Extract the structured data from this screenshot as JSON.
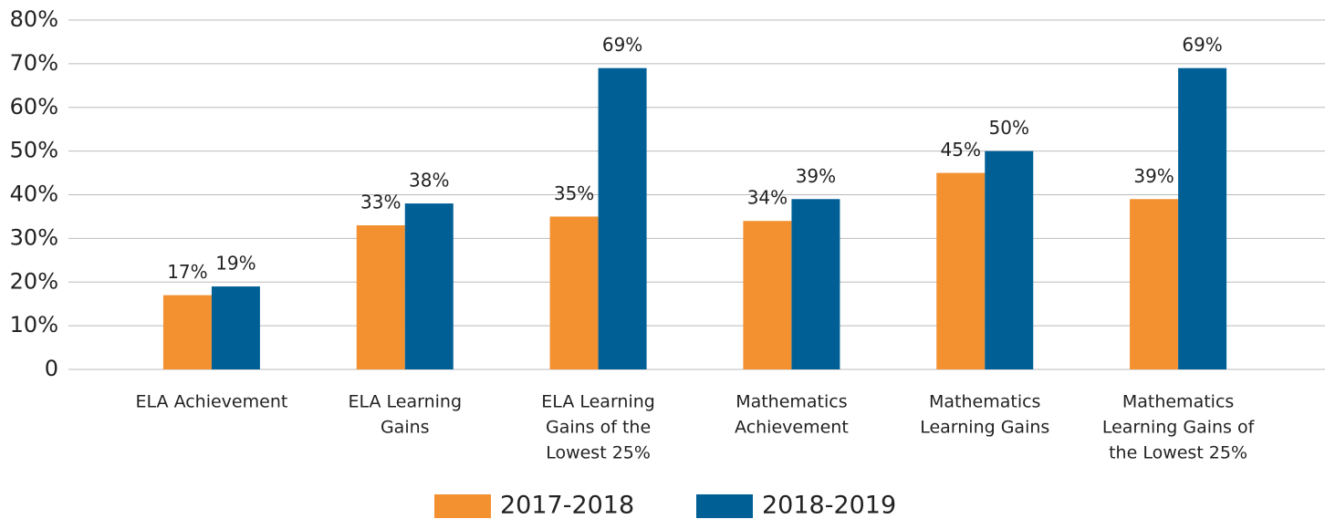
{
  "chart_data": {
    "type": "bar",
    "categories": [
      [
        "ELA Achievement"
      ],
      [
        "ELA Learning",
        "Gains"
      ],
      [
        "ELA Learning",
        "Gains of the",
        "Lowest 25%"
      ],
      [
        "Mathematics",
        "Achievement"
      ],
      [
        "Mathematics",
        "Learning Gains"
      ],
      [
        "Mathematics",
        "Learning Gains of",
        "the Lowest 25%"
      ]
    ],
    "series": [
      {
        "name": "2017-2018",
        "color": "#f39130",
        "values": [
          17,
          33,
          35,
          34,
          45,
          39
        ],
        "value_labels": [
          "17%",
          "33%",
          "35%",
          "34%",
          "45%",
          "39%"
        ]
      },
      {
        "name": "2018-2019",
        "color": "#006096",
        "values": [
          19,
          38,
          69,
          39,
          50,
          69
        ],
        "value_labels": [
          "19%",
          "38%",
          "69%",
          "39%",
          "50%",
          "69%"
        ]
      }
    ],
    "ylim": [
      0,
      80
    ],
    "yticks": [
      0,
      {
        "value": 10,
        "label": "10%"
      },
      {
        "value": 20,
        "label": "20%"
      },
      {
        "value": 30,
        "label": "30%"
      },
      {
        "value": 40,
        "label": "40%"
      },
      {
        "value": 50,
        "label": "50%"
      },
      {
        "value": 60,
        "label": "60%"
      },
      {
        "value": 70,
        "label": "70%"
      },
      {
        "value": 80,
        "label": "80%"
      }
    ],
    "grid": true,
    "legend": "bottom"
  }
}
